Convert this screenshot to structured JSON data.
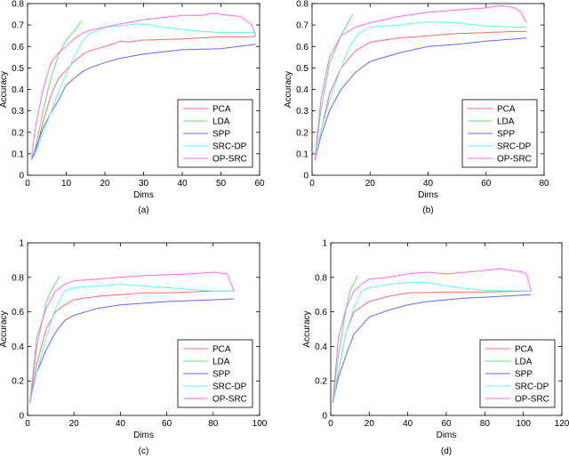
{
  "chart_data": [
    {
      "type": "line",
      "caption": "(a)",
      "xlabel": "Dims",
      "ylabel": "Accuracy",
      "xlim": [
        0,
        60
      ],
      "ylim": [
        0,
        0.8
      ],
      "xticks": [
        0,
        10,
        20,
        30,
        40,
        50,
        60
      ],
      "yticks": [
        0,
        0.1,
        0.2,
        0.3,
        0.4,
        0.5,
        0.6,
        0.7,
        0.8
      ],
      "legend_position": "bottom-right",
      "series": [
        {
          "name": "PCA",
          "color": "#ff6b6b",
          "x": [
            1,
            2,
            4,
            6,
            8,
            10,
            12,
            14,
            16,
            18,
            20,
            24,
            26,
            30,
            40,
            50,
            58,
            59
          ],
          "y": [
            0.07,
            0.1,
            0.25,
            0.37,
            0.45,
            0.49,
            0.53,
            0.56,
            0.58,
            0.59,
            0.6,
            0.625,
            0.62,
            0.63,
            0.635,
            0.645,
            0.645,
            0.65
          ]
        },
        {
          "name": "LDA",
          "color": "#66e066",
          "x": [
            1,
            2,
            4,
            6,
            8,
            10,
            12,
            14
          ],
          "y": [
            0.07,
            0.12,
            0.3,
            0.45,
            0.56,
            0.63,
            0.67,
            0.72
          ]
        },
        {
          "name": "SPP",
          "color": "#6666ff",
          "x": [
            1,
            2,
            4,
            6,
            8,
            10,
            12,
            14,
            16,
            20,
            24,
            30,
            40,
            50,
            59
          ],
          "y": [
            0.07,
            0.12,
            0.22,
            0.29,
            0.35,
            0.42,
            0.45,
            0.48,
            0.5,
            0.525,
            0.545,
            0.565,
            0.585,
            0.59,
            0.61
          ]
        },
        {
          "name": "SRC-DP",
          "color": "#5ff5f5",
          "x": [
            1,
            2,
            4,
            6,
            8,
            10,
            12,
            14,
            16,
            20,
            24,
            28,
            32,
            34,
            40,
            45,
            50,
            59
          ],
          "y": [
            0.07,
            0.1,
            0.2,
            0.29,
            0.39,
            0.47,
            0.55,
            0.62,
            0.66,
            0.69,
            0.695,
            0.705,
            0.7,
            0.69,
            0.68,
            0.67,
            0.665,
            0.665
          ]
        },
        {
          "name": "OP-SRC",
          "color": "#ff66ff",
          "x": [
            1,
            2,
            4,
            6,
            8,
            10,
            12,
            14,
            16,
            20,
            24,
            30,
            40,
            45,
            48,
            50,
            55,
            58,
            59
          ],
          "y": [
            0.07,
            0.22,
            0.4,
            0.52,
            0.57,
            0.6,
            0.635,
            0.66,
            0.675,
            0.69,
            0.705,
            0.725,
            0.745,
            0.745,
            0.755,
            0.75,
            0.74,
            0.7,
            0.65
          ]
        }
      ]
    },
    {
      "type": "line",
      "caption": "(b)",
      "xlabel": "Dims",
      "ylabel": "Accuracy",
      "xlim": [
        0,
        80
      ],
      "ylim": [
        0,
        0.8
      ],
      "xticks": [
        0,
        20,
        40,
        60,
        80
      ],
      "yticks": [
        0,
        0.1,
        0.2,
        0.3,
        0.4,
        0.5,
        0.6,
        0.7,
        0.8
      ],
      "legend_position": "bottom-right",
      "series": [
        {
          "name": "PCA",
          "color": "#ff6b6b",
          "x": [
            1,
            3,
            6,
            10,
            15,
            20,
            30,
            40,
            50,
            60,
            70,
            74
          ],
          "y": [
            0.07,
            0.2,
            0.38,
            0.5,
            0.58,
            0.62,
            0.64,
            0.65,
            0.66,
            0.665,
            0.67,
            0.67
          ]
        },
        {
          "name": "LDA",
          "color": "#66e066",
          "x": [
            1,
            3,
            6,
            10,
            14
          ],
          "y": [
            0.07,
            0.3,
            0.52,
            0.65,
            0.75
          ]
        },
        {
          "name": "SPP",
          "color": "#6666ff",
          "x": [
            1,
            3,
            6,
            10,
            15,
            20,
            30,
            40,
            50,
            60,
            70,
            74
          ],
          "y": [
            0.07,
            0.18,
            0.3,
            0.4,
            0.48,
            0.53,
            0.57,
            0.6,
            0.61,
            0.625,
            0.635,
            0.64
          ]
        },
        {
          "name": "SRC-DP",
          "color": "#5ff5f5",
          "x": [
            1,
            3,
            6,
            10,
            13,
            16,
            20,
            30,
            40,
            50,
            60,
            70,
            74
          ],
          "y": [
            0.07,
            0.2,
            0.35,
            0.5,
            0.6,
            0.66,
            0.69,
            0.7,
            0.715,
            0.71,
            0.695,
            0.69,
            0.69
          ]
        },
        {
          "name": "OP-SRC",
          "color": "#ff66ff",
          "x": [
            1,
            3,
            6,
            10,
            15,
            20,
            30,
            40,
            50,
            60,
            65,
            70,
            72,
            74
          ],
          "y": [
            0.07,
            0.35,
            0.55,
            0.65,
            0.69,
            0.71,
            0.74,
            0.76,
            0.77,
            0.78,
            0.79,
            0.78,
            0.76,
            0.71
          ]
        }
      ]
    },
    {
      "type": "line",
      "caption": "(c)",
      "xlabel": "Dims",
      "ylabel": "Accuracy",
      "xlim": [
        0,
        100
      ],
      "ylim": [
        0,
        1
      ],
      "xticks": [
        0,
        20,
        40,
        60,
        80,
        100
      ],
      "yticks": [
        0,
        0.2,
        0.4,
        0.6,
        0.8,
        1
      ],
      "legend_position": "bottom-right",
      "series": [
        {
          "name": "PCA",
          "color": "#ff6b6b",
          "x": [
            1,
            4,
            8,
            12,
            16,
            20,
            30,
            40,
            50,
            60,
            70,
            80,
            89
          ],
          "y": [
            0.07,
            0.3,
            0.5,
            0.6,
            0.64,
            0.67,
            0.69,
            0.7,
            0.71,
            0.71,
            0.715,
            0.72,
            0.72
          ]
        },
        {
          "name": "LDA",
          "color": "#66e066",
          "x": [
            1,
            4,
            8,
            10,
            14
          ],
          "y": [
            0.07,
            0.4,
            0.65,
            0.72,
            0.81
          ]
        },
        {
          "name": "SPP",
          "color": "#6666ff",
          "x": [
            1,
            4,
            8,
            12,
            16,
            20,
            30,
            40,
            50,
            60,
            70,
            80,
            89
          ],
          "y": [
            0.07,
            0.25,
            0.38,
            0.48,
            0.55,
            0.58,
            0.62,
            0.64,
            0.65,
            0.66,
            0.665,
            0.67,
            0.675
          ]
        },
        {
          "name": "SRC-DP",
          "color": "#5ff5f5",
          "x": [
            1,
            4,
            8,
            12,
            16,
            20,
            30,
            40,
            50,
            60,
            70,
            80,
            89
          ],
          "y": [
            0.07,
            0.25,
            0.45,
            0.62,
            0.72,
            0.74,
            0.75,
            0.76,
            0.75,
            0.74,
            0.73,
            0.72,
            0.72
          ]
        },
        {
          "name": "OP-SRC",
          "color": "#ff66ff",
          "x": [
            1,
            4,
            8,
            12,
            16,
            20,
            30,
            40,
            50,
            60,
            70,
            80,
            86,
            89
          ],
          "y": [
            0.07,
            0.45,
            0.62,
            0.72,
            0.76,
            0.78,
            0.79,
            0.8,
            0.81,
            0.815,
            0.82,
            0.83,
            0.82,
            0.72
          ]
        }
      ]
    },
    {
      "type": "line",
      "caption": "(d)",
      "xlabel": "Dims",
      "ylabel": "Accuracy",
      "xlim": [
        0,
        120
      ],
      "ylim": [
        0,
        1
      ],
      "xticks": [
        0,
        20,
        40,
        60,
        80,
        100,
        120
      ],
      "yticks": [
        0,
        0.2,
        0.4,
        0.6,
        0.8,
        1
      ],
      "legend_position": "bottom-right",
      "series": [
        {
          "name": "PCA",
          "color": "#ff6b6b",
          "x": [
            1,
            4,
            8,
            12,
            16,
            20,
            30,
            40,
            60,
            80,
            104
          ],
          "y": [
            0.07,
            0.25,
            0.48,
            0.6,
            0.63,
            0.66,
            0.69,
            0.71,
            0.715,
            0.715,
            0.72
          ]
        },
        {
          "name": "LDA",
          "color": "#66e066",
          "x": [
            1,
            4,
            8,
            10,
            14
          ],
          "y": [
            0.07,
            0.35,
            0.62,
            0.72,
            0.81
          ]
        },
        {
          "name": "SPP",
          "color": "#6666ff",
          "x": [
            1,
            4,
            8,
            12,
            16,
            20,
            30,
            40,
            50,
            60,
            70,
            80,
            104
          ],
          "y": [
            0.07,
            0.22,
            0.35,
            0.47,
            0.52,
            0.57,
            0.61,
            0.64,
            0.66,
            0.67,
            0.68,
            0.685,
            0.7
          ]
        },
        {
          "name": "SRC-DP",
          "color": "#5ff5f5",
          "x": [
            1,
            4,
            8,
            12,
            16,
            20,
            30,
            40,
            50,
            60,
            70,
            80,
            104
          ],
          "y": [
            0.07,
            0.25,
            0.48,
            0.62,
            0.72,
            0.74,
            0.76,
            0.77,
            0.77,
            0.75,
            0.735,
            0.725,
            0.72
          ]
        },
        {
          "name": "OP-SRC",
          "color": "#ff66ff",
          "x": [
            1,
            4,
            8,
            12,
            16,
            20,
            30,
            40,
            50,
            60,
            70,
            80,
            88,
            100,
            102,
            104
          ],
          "y": [
            0.07,
            0.45,
            0.62,
            0.72,
            0.76,
            0.79,
            0.8,
            0.82,
            0.83,
            0.82,
            0.83,
            0.84,
            0.85,
            0.83,
            0.81,
            0.72
          ]
        }
      ]
    }
  ]
}
